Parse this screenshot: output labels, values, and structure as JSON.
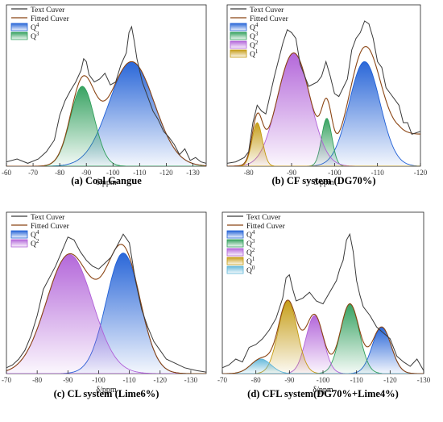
{
  "colors": {
    "test_curve": "#3a3a3a",
    "fitted_curve": "#8b4513",
    "Q4": "#1f5fd6",
    "Q3": "#2e9e5a",
    "Q2": "#b060d8",
    "Q1": "#c49a10",
    "Q0": "#5fb6d8"
  },
  "chart_data": [
    {
      "type": "line",
      "caption": "(a) Coal  Gangue",
      "xlabel": "δ/ppm",
      "xlim": [
        -60,
        -135
      ],
      "xticks": [
        -60,
        -70,
        -80,
        -90,
        -100,
        -110,
        -120,
        -130
      ],
      "legend": [
        "Text Cuver",
        "Fitted Cuver",
        "Q4",
        "Q3"
      ],
      "peaks": [
        {
          "name": "Q4",
          "center": -107,
          "height": 0.72,
          "width": 8.5
        },
        {
          "name": "Q3",
          "center": -88.5,
          "height": 0.55,
          "width": 4.5
        }
      ],
      "test_curve": {
        "x": [
          -60,
          -64,
          -68,
          -72,
          -75,
          -78,
          -80,
          -82,
          -84,
          -86,
          -88,
          -89,
          -90,
          -91,
          -93,
          -95,
          -97,
          -99,
          -101,
          -103,
          -105,
          -106,
          -107,
          -108,
          -109,
          -110,
          -111,
          -113,
          -115,
          -117,
          -119,
          -121,
          -123,
          -125,
          -127,
          -129,
          -131,
          -133,
          -135
        ],
        "y": [
          0.03,
          0.05,
          0.02,
          0.05,
          0.1,
          0.18,
          0.35,
          0.45,
          0.52,
          0.58,
          0.66,
          0.74,
          0.72,
          0.63,
          0.58,
          0.6,
          0.64,
          0.56,
          0.58,
          0.7,
          0.78,
          0.92,
          0.96,
          0.86,
          0.74,
          0.66,
          0.58,
          0.48,
          0.38,
          0.32,
          0.24,
          0.2,
          0.15,
          0.08,
          0.12,
          0.04,
          0.06,
          0.03,
          0.02
        ]
      }
    },
    {
      "type": "line",
      "caption": "(b) CF system (DG70%)",
      "xlabel": "δ/ppm",
      "xlim": [
        -75,
        -120
      ],
      "xticks": [
        -80,
        -90,
        -100,
        -110,
        -120
      ],
      "legend": [
        "Text Cuver",
        "Fitted Cuver",
        "Q4",
        "Q3",
        "Q2",
        "Q1"
      ],
      "peaks": [
        {
          "name": "Q4",
          "center": -107,
          "height": 0.72,
          "width": 3.6
        },
        {
          "name": "Q3",
          "center": -98.2,
          "height": 0.33,
          "width": 1.2
        },
        {
          "name": "Q2",
          "center": -90.5,
          "height": 0.78,
          "width": 3.8
        },
        {
          "name": "Q1",
          "center": -82,
          "height": 0.3,
          "width": 1.2
        }
      ],
      "baseline": 0.22,
      "test_curve": {
        "x": [
          -75,
          -77,
          -79,
          -80,
          -81,
          -82,
          -83,
          -84,
          -86,
          -88,
          -89,
          -90,
          -91,
          -92,
          -94,
          -96,
          -97,
          -98,
          -99,
          -100,
          -101,
          -103,
          -104,
          -105,
          -106,
          -107,
          -108,
          -109,
          -110,
          -111,
          -112,
          -113,
          -114,
          -115,
          -116,
          -117,
          -118,
          -120
        ],
        "y": [
          0.02,
          0.03,
          0.06,
          0.1,
          0.3,
          0.42,
          0.38,
          0.36,
          0.62,
          0.85,
          0.94,
          0.92,
          0.88,
          0.7,
          0.55,
          0.58,
          0.62,
          0.72,
          0.62,
          0.5,
          0.48,
          0.6,
          0.8,
          0.88,
          0.92,
          1.0,
          0.98,
          0.88,
          0.72,
          0.68,
          0.54,
          0.5,
          0.46,
          0.42,
          0.3,
          0.3,
          0.22,
          0.24
        ]
      }
    },
    {
      "type": "line",
      "caption": "(c) CL system (Lime6%)",
      "xlabel": "δ/ppm",
      "xlim": [
        -70,
        -135
      ],
      "xticks": [
        -70,
        -80,
        -90,
        -100,
        -110,
        -120,
        -130
      ],
      "legend": [
        "Text Cuver",
        "Fitted Cuver",
        "Q4",
        "Q2"
      ],
      "peaks": [
        {
          "name": "Q4",
          "center": -108,
          "height": 0.83,
          "width": 5.5
        },
        {
          "name": "Q2",
          "center": -90.5,
          "height": 0.82,
          "width": 7.5
        }
      ],
      "test_curve": {
        "x": [
          -70,
          -72,
          -74,
          -76,
          -78,
          -80,
          -82,
          -84,
          -86,
          -88,
          -90,
          -92,
          -94,
          -96,
          -98,
          -100,
          -102,
          -104,
          -106,
          -108,
          -110,
          -112,
          -114,
          -116,
          -118,
          -120,
          -122,
          -124,
          -126,
          -128,
          -130,
          -132,
          -135
        ],
        "y": [
          0.04,
          0.06,
          0.1,
          0.16,
          0.26,
          0.4,
          0.58,
          0.66,
          0.74,
          0.84,
          0.94,
          0.92,
          0.84,
          0.78,
          0.74,
          0.72,
          0.76,
          0.8,
          0.88,
          0.96,
          0.9,
          0.64,
          0.44,
          0.32,
          0.22,
          0.16,
          0.1,
          0.08,
          0.06,
          0.04,
          0.03,
          0.02,
          0.01
        ]
      }
    },
    {
      "type": "line",
      "caption": "(d) CFL system(DG70%+Lime4%)",
      "xlabel": "δ/ppm",
      "xlim": [
        -70,
        -130
      ],
      "xticks": [
        -70,
        -80,
        -90,
        -100,
        -110,
        -120,
        -130
      ],
      "legend": [
        "Text Cuver",
        "Fitted Cuver",
        "Q4",
        "Q3",
        "Q2",
        "Q1",
        "Q0"
      ],
      "peaks": [
        {
          "name": "Q4",
          "center": -117.5,
          "height": 0.32,
          "width": 2.8
        },
        {
          "name": "Q3",
          "center": -108,
          "height": 0.48,
          "width": 2.8
        },
        {
          "name": "Q2",
          "center": -97.5,
          "height": 0.4,
          "width": 2.6
        },
        {
          "name": "Q1",
          "center": -89.5,
          "height": 0.5,
          "width": 2.8
        },
        {
          "name": "Q0",
          "center": -81.5,
          "height": 0.1,
          "width": 3.0
        }
      ],
      "test_curve": {
        "x": [
          -70,
          -72,
          -74,
          -76,
          -78,
          -80,
          -82,
          -84,
          -86,
          -88,
          -89,
          -90,
          -91,
          -92,
          -94,
          -96,
          -98,
          -100,
          -102,
          -104,
          -105,
          -106,
          -107,
          -108,
          -109,
          -110,
          -111,
          -112,
          -114,
          -116,
          -118,
          -120,
          -122,
          -124,
          -126,
          -128,
          -130
        ],
        "y": [
          0.04,
          0.06,
          0.1,
          0.08,
          0.18,
          0.2,
          0.24,
          0.3,
          0.38,
          0.52,
          0.66,
          0.68,
          0.58,
          0.5,
          0.52,
          0.56,
          0.5,
          0.48,
          0.56,
          0.64,
          0.72,
          0.78,
          0.92,
          0.96,
          0.84,
          0.64,
          0.54,
          0.46,
          0.4,
          0.32,
          0.28,
          0.24,
          0.12,
          0.08,
          0.05,
          0.1,
          0.02
        ]
      }
    }
  ]
}
